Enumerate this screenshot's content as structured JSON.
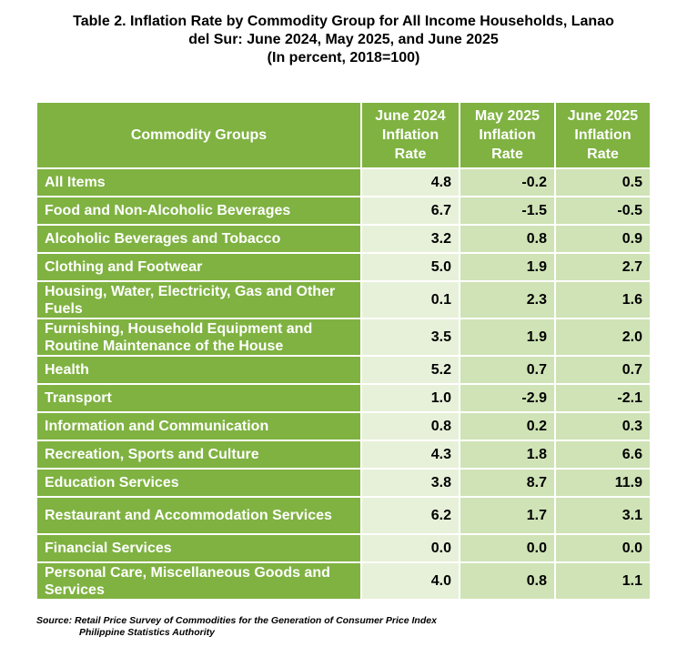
{
  "title": {
    "line1": "Table 2. Inflation Rate by Commodity Group for All Income Households, Lanao",
    "line2": "del Sur: June 2024, May 2025, and June 2025",
    "line3": "(In percent, 2018=100)"
  },
  "table": {
    "headers": {
      "col0": "Commodity Groups",
      "col1": [
        "June 2024",
        "Inflation",
        "Rate"
      ],
      "col2": [
        "May 2025",
        "Inflation",
        "Rate"
      ],
      "col3": [
        "June 2025",
        "Inflation",
        "Rate"
      ]
    },
    "rows": [
      {
        "label": "All Items",
        "v1": "4.8",
        "v2": "-0.2",
        "v3": "0.5"
      },
      {
        "label": "Food and Non-Alcoholic Beverages",
        "v1": "6.7",
        "v2": "-1.5",
        "v3": "-0.5"
      },
      {
        "label": "Alcoholic Beverages and Tobacco",
        "v1": "3.2",
        "v2": "0.8",
        "v3": "0.9"
      },
      {
        "label": "Clothing and Footwear",
        "v1": "5.0",
        "v2": "1.9",
        "v3": "2.7"
      },
      {
        "label": "Housing, Water, Electricity, Gas and Other Fuels",
        "v1": "0.1",
        "v2": "2.3",
        "v3": "1.6"
      },
      {
        "label": "Furnishing, Household Equipment and Routine Maintenance of the House",
        "v1": "3.5",
        "v2": "1.9",
        "v3": "2.0"
      },
      {
        "label": "Health",
        "v1": "5.2",
        "v2": "0.7",
        "v3": "0.7"
      },
      {
        "label": "Transport",
        "v1": "1.0",
        "v2": "-2.9",
        "v3": "-2.1"
      },
      {
        "label": "Information and Communication",
        "v1": "0.8",
        "v2": "0.2",
        "v3": "0.3"
      },
      {
        "label": "Recreation, Sports and Culture",
        "v1": "4.3",
        "v2": "1.8",
        "v3": "6.6"
      },
      {
        "label": "Education Services",
        "v1": "3.8",
        "v2": "8.7",
        "v3": "11.9"
      },
      {
        "label": "Restaurant and Accommodation Services",
        "v1": "6.2",
        "v2": "1.7",
        "v3": "3.1"
      },
      {
        "label": "Financial Services",
        "v1": "0.0",
        "v2": "0.0",
        "v3": "0.0"
      },
      {
        "label": "Personal Care, Miscellaneous Goods and Services",
        "v1": "4.0",
        "v2": "0.8",
        "v3": "1.1"
      }
    ]
  },
  "source": {
    "line1": "Source: Retail Price Survey of Commodities for the Generation of Consumer Price Index",
    "line2": "Philippine Statistics Authority"
  },
  "colors": {
    "header_green": "#7fb241",
    "value_light": "#e7f1d9",
    "value_mid": "#cfe3b6"
  }
}
